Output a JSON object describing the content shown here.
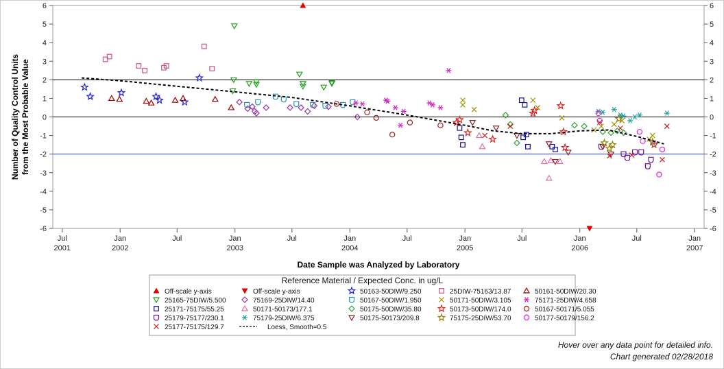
{
  "chart_data": {
    "type": "scatter",
    "xlabel": "Date Sample was Analyzed by Laboratory",
    "ylabel_lines": [
      "Number of Quality Control Units",
      "from the Most Probable Value"
    ],
    "ylim": [
      -6,
      6
    ],
    "xlim": [
      "2001-06-01",
      "2007-01-31"
    ],
    "y_ticks": [
      -6,
      -5,
      -4,
      -3,
      -2,
      -1,
      0,
      1,
      2,
      3,
      4,
      5,
      6
    ],
    "x_ticks": [
      {
        "date": "2001-07-01",
        "label1": "Jul",
        "label2": "2001"
      },
      {
        "date": "2002-01-01",
        "label1": "Jan",
        "label2": "2002"
      },
      {
        "date": "2002-07-01",
        "label1": "Jul",
        "label2": ""
      },
      {
        "date": "2003-01-01",
        "label1": "Jan",
        "label2": "2003"
      },
      {
        "date": "2003-07-01",
        "label1": "Jul",
        "label2": ""
      },
      {
        "date": "2004-01-01",
        "label1": "Jan",
        "label2": "2004"
      },
      {
        "date": "2004-07-01",
        "label1": "Jul",
        "label2": ""
      },
      {
        "date": "2005-01-01",
        "label1": "Jan",
        "label2": "2005"
      },
      {
        "date": "2005-07-01",
        "label1": "Jul",
        "label2": ""
      },
      {
        "date": "2006-01-01",
        "label1": "Jan",
        "label2": "2006"
      },
      {
        "date": "2006-07-01",
        "label1": "Jul",
        "label2": ""
      },
      {
        "date": "2007-01-01",
        "label1": "Jan",
        "label2": "2007"
      }
    ],
    "reference_lines": [
      {
        "y": 2,
        "color": "#000000"
      },
      {
        "y": 0,
        "color": "#000000"
      },
      {
        "y": -2,
        "color": "#1f3fbf"
      }
    ],
    "legend_title": "Reference Material / Expected Conc. in ug/L",
    "series": [
      {
        "name": "Off-scale y-axis",
        "marker": "tri-up-filled",
        "color": "#e00000",
        "points": [
          [
            "2003-08-05",
            6
          ]
        ]
      },
      {
        "name": "Off-scale y-axis",
        "marker": "tri-down-filled",
        "color": "#e00000",
        "points": [
          [
            "2006-02-01",
            -6
          ]
        ]
      },
      {
        "name": "50163-50DIW/9.250",
        "marker": "star",
        "color": "#1f1fe0",
        "points": [
          [
            "2001-09-10",
            1.6
          ],
          [
            "2001-09-28",
            1.1
          ],
          [
            "2002-01-05",
            1.3
          ],
          [
            "2002-04-25",
            1.1
          ],
          [
            "2002-05-06",
            0.9
          ],
          [
            "2002-07-25",
            0.8
          ],
          [
            "2002-09-10",
            2.1
          ]
        ]
      },
      {
        "name": "25DIW-75163/13.87",
        "marker": "square",
        "color": "#d0508a",
        "points": [
          [
            "2001-11-15",
            3.1
          ],
          [
            "2001-11-28",
            3.25
          ],
          [
            "2002-03-01",
            2.75
          ],
          [
            "2002-03-20",
            2.5
          ],
          [
            "2002-05-20",
            2.65
          ],
          [
            "2002-05-28",
            2.75
          ],
          [
            "2002-09-25",
            3.8
          ],
          [
            "2002-10-20",
            2.6
          ]
        ]
      },
      {
        "name": "50161-50DIW/20.30",
        "marker": "tri-up",
        "color": "#a00000",
        "points": [
          [
            "2001-12-05",
            1.0
          ],
          [
            "2001-12-30",
            0.95
          ],
          [
            "2002-03-25",
            0.85
          ],
          [
            "2002-04-10",
            0.75
          ],
          [
            "2002-06-25",
            0.9
          ],
          [
            "2002-07-20",
            1.0
          ],
          [
            "2002-10-30",
            0.95
          ],
          [
            "2002-12-20",
            0.5
          ]
        ]
      },
      {
        "name": "25165-75DIW/5.500",
        "marker": "tri-down",
        "color": "#20a020",
        "points": [
          [
            "2002-12-30",
            4.9
          ],
          [
            "2002-12-28",
            2.0
          ],
          [
            "2002-12-25",
            1.4
          ],
          [
            "2003-02-15",
            1.8
          ],
          [
            "2003-03-10",
            1.9
          ],
          [
            "2003-03-10",
            1.75
          ],
          [
            "2003-07-25",
            2.3
          ],
          [
            "2003-08-05",
            1.8
          ],
          [
            "2003-08-05",
            1.65
          ],
          [
            "2003-10-10",
            1.6
          ],
          [
            "2003-11-05",
            1.85
          ],
          [
            "2003-11-05",
            1.8
          ]
        ]
      },
      {
        "name": "75169-25DIW/14.40",
        "marker": "diamond",
        "color": "#9a2ea8",
        "points": [
          [
            "2003-01-15",
            0.8
          ],
          [
            "2003-02-25",
            0.55
          ],
          [
            "2003-03-05",
            0.3
          ],
          [
            "2003-04-10",
            0.5
          ],
          [
            "2003-06-25",
            0.5
          ],
          [
            "2003-07-30",
            0.5
          ],
          [
            "2003-08-20",
            0.3
          ],
          [
            "2003-09-10",
            0.6
          ],
          [
            "2003-10-25",
            0.55
          ],
          [
            "2004-01-25",
            0.0
          ],
          [
            "2003-03-10",
            0.2
          ],
          [
            "2003-02-10",
            0.45
          ]
        ]
      },
      {
        "name": "50167-50DIW/1.950",
        "marker": "shield",
        "color": "#2d8fb8",
        "points": [
          [
            "2003-02-08",
            0.65
          ],
          [
            "2003-03-15",
            0.8
          ],
          [
            "2003-05-10",
            1.1
          ],
          [
            "2003-06-05",
            0.95
          ],
          [
            "2003-07-15",
            0.7
          ],
          [
            "2003-09-05",
            0.65
          ],
          [
            "2003-10-15",
            0.6
          ],
          [
            "2003-12-10",
            0.65
          ],
          [
            "2004-01-10",
            0.8
          ]
        ]
      },
      {
        "name": "50171-50DIW/3.105",
        "marker": "x",
        "color": "#a09000",
        "points": [
          [
            "2004-12-25",
            0.9
          ],
          [
            "2004-12-25",
            0.65
          ],
          [
            "2005-01-30",
            0.4
          ],
          [
            "2005-08-05",
            0.9
          ],
          [
            "2005-08-20",
            0.5
          ],
          [
            "2005-11-05",
            -0.05
          ],
          [
            "2006-02-15",
            -0.7
          ],
          [
            "2006-03-10",
            -0.5
          ],
          [
            "2006-04-20",
            -0.4
          ],
          [
            "2006-05-15",
            -0.2
          ],
          [
            "2006-08-10",
            -1.2
          ],
          [
            "2006-08-20",
            -1.0
          ]
        ]
      },
      {
        "name": "75171-25DIW/4.658",
        "marker": "asterisk",
        "color": "#d020c0",
        "points": [
          [
            "2004-01-20",
            0.75
          ],
          [
            "2004-02-10",
            0.7
          ],
          [
            "2004-04-25",
            0.9
          ],
          [
            "2004-05-25",
            0.5
          ],
          [
            "2004-06-20",
            0.3
          ],
          [
            "2004-09-10",
            0.75
          ],
          [
            "2004-09-20",
            0.65
          ],
          [
            "2004-10-15",
            0.5
          ],
          [
            "2004-11-10",
            2.5
          ],
          [
            "2004-04-30",
            0.85
          ],
          [
            "2004-06-10",
            -0.45
          ]
        ]
      },
      {
        "name": "25171-75175/55.25",
        "marker": "square",
        "color": "#101090",
        "points": [
          [
            "2004-12-15",
            -0.6
          ],
          [
            "2004-12-20",
            -1.1
          ],
          [
            "2005-06-30",
            0.9
          ],
          [
            "2005-07-10",
            0.65
          ],
          [
            "2005-07-05",
            -1.1
          ],
          [
            "2005-07-15",
            -0.95
          ],
          [
            "2005-10-05",
            -1.6
          ],
          [
            "2005-10-15",
            -1.75
          ],
          [
            "2004-12-25",
            -1.5
          ],
          [
            "2005-07-20",
            -1.6
          ]
        ]
      },
      {
        "name": "50171-50173/177.1",
        "marker": "tri-up",
        "color": "#e070a0",
        "points": [
          [
            "2005-09-10",
            -2.4
          ],
          [
            "2005-10-01",
            -2.35
          ],
          [
            "2005-09-25",
            -3.3
          ],
          [
            "2005-10-30",
            -2.4
          ],
          [
            "2005-02-15",
            -1.0
          ],
          [
            "2005-02-25",
            -1.6
          ]
        ]
      },
      {
        "name": "50175-50DIW/35.80",
        "marker": "diamond",
        "color": "#30a030",
        "points": [
          [
            "2005-05-10",
            0.1
          ],
          [
            "2005-05-25",
            -0.4
          ],
          [
            "2005-06-15",
            -1.4
          ],
          [
            "2005-12-15",
            -0.45
          ],
          [
            "2006-01-15",
            -0.5
          ],
          [
            "2006-03-15",
            -0.8
          ],
          [
            "2006-04-10",
            -0.85
          ],
          [
            "2006-04-30",
            -0.75
          ],
          [
            "2006-05-20",
            -0.85
          ]
        ]
      },
      {
        "name": "50173-50DIW/174.0",
        "marker": "star",
        "color": "#e02020",
        "points": [
          [
            "2004-12-05",
            -0.3
          ],
          [
            "2004-12-15",
            -0.15
          ],
          [
            "2005-01-10",
            -0.85
          ],
          [
            "2005-03-30",
            -1.2
          ],
          [
            "2005-08-05",
            0.2
          ],
          [
            "2005-08-10",
            0.35
          ],
          [
            "2005-11-01",
            0.6
          ],
          [
            "2005-11-15",
            -1.65
          ],
          [
            "2005-11-10",
            -0.8
          ]
        ]
      },
      {
        "name": "50167-50171/5.055",
        "marker": "circle",
        "color": "#a02020",
        "points": [
          [
            "2004-02-25",
            0.25
          ],
          [
            "2004-03-25",
            -0.05
          ],
          [
            "2004-05-15",
            -0.95
          ],
          [
            "2004-07-10",
            -0.3
          ],
          [
            "2004-10-15",
            -0.45
          ],
          [
            "2003-11-20",
            0.7
          ]
        ]
      },
      {
        "name": "25179-75177/230.1",
        "marker": "shield",
        "color": "#701090",
        "points": [
          [
            "2006-03-10",
            -1.6
          ],
          [
            "2006-05-20",
            -2.0
          ],
          [
            "2006-06-01",
            -2.2
          ],
          [
            "2006-08-05",
            -2.65
          ],
          [
            "2006-08-15",
            -2.3
          ],
          [
            "2006-06-25",
            -1.9
          ],
          [
            "2006-07-15",
            -1.9
          ]
        ]
      },
      {
        "name": "75179-25DIW/6.375",
        "marker": "asterisk",
        "color": "#20a0a0",
        "points": [
          [
            "2006-03-01",
            0.3
          ],
          [
            "2006-03-15",
            0.25
          ],
          [
            "2006-04-20",
            0.4
          ],
          [
            "2006-05-10",
            0.1
          ],
          [
            "2006-05-20",
            0.05
          ],
          [
            "2006-06-10",
            -0.2
          ],
          [
            "2006-06-25",
            0.0
          ],
          [
            "2006-07-10",
            0.1
          ],
          [
            "2006-10-05",
            0.2
          ]
        ]
      },
      {
        "name": "50175-50173/209.8",
        "marker": "tri-down",
        "color": "#902020",
        "points": [
          [
            "2005-01-25",
            -0.3
          ],
          [
            "2005-04-10",
            -0.6
          ],
          [
            "2005-06-15",
            -1.0
          ],
          [
            "2005-09-25",
            -1.45
          ],
          [
            "2005-10-15",
            -2.4
          ],
          [
            "2005-11-25",
            -1.9
          ],
          [
            "2006-03-15",
            -1.6
          ],
          [
            "2006-04-10",
            -2.0
          ]
        ]
      },
      {
        "name": "75175-25DIW/53.70",
        "marker": "star",
        "color": "#908000",
        "points": [
          [
            "2006-03-20",
            -1.4
          ],
          [
            "2006-04-05",
            -1.7
          ],
          [
            "2006-04-15",
            -1.5
          ],
          [
            "2006-08-20",
            -1.35
          ],
          [
            "2006-08-25",
            -1.5
          ],
          [
            "2006-05-05",
            -0.1
          ]
        ]
      },
      {
        "name": "50177-50179/156.2",
        "marker": "circle",
        "color": "#e020e0",
        "points": [
          [
            "2006-03-01",
            0.2
          ],
          [
            "2006-07-10",
            -0.8
          ],
          [
            "2006-07-20",
            -1.3
          ],
          [
            "2006-08-25",
            -1.45
          ],
          [
            "2006-09-10",
            -3.1
          ],
          [
            "2006-09-20",
            -1.75
          ],
          [
            "2006-03-05",
            -0.2
          ]
        ]
      },
      {
        "name": "25177-75175/129.7",
        "marker": "x",
        "color": "#c02020",
        "points": [
          [
            "2005-03-05",
            -1.0
          ],
          [
            "2005-05-25",
            -0.5
          ],
          [
            "2006-04-05",
            -2.1
          ],
          [
            "2006-05-10",
            -0.6
          ],
          [
            "2006-06-15",
            -2.05
          ],
          [
            "2006-09-20",
            -2.3
          ],
          [
            "2006-10-05",
            -0.5
          ],
          [
            "2006-03-05",
            -0.3
          ]
        ]
      }
    ],
    "loess": {
      "name": "Loess, Smooth=0.5",
      "points": [
        [
          "2001-09-01",
          2.1
        ],
        [
          "2002-01-01",
          1.95
        ],
        [
          "2002-07-01",
          1.65
        ],
        [
          "2003-01-01",
          1.35
        ],
        [
          "2003-07-01",
          1.05
        ],
        [
          "2004-01-01",
          0.6
        ],
        [
          "2004-07-01",
          0.1
        ],
        [
          "2005-01-01",
          -0.45
        ],
        [
          "2005-04-01",
          -0.75
        ],
        [
          "2005-07-01",
          -0.9
        ],
        [
          "2005-10-01",
          -0.9
        ],
        [
          "2006-01-01",
          -0.75
        ],
        [
          "2006-04-01",
          -0.7
        ],
        [
          "2006-07-01",
          -1.05
        ],
        [
          "2006-09-25",
          -1.45
        ]
      ]
    }
  },
  "notes": {
    "hover": "Hover over any data point for detailed info.",
    "generated": "Chart generated 02/28/2018"
  }
}
